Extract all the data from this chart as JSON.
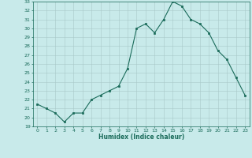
{
  "xlabel": "Humidex (Indice chaleur)",
  "x": [
    0,
    1,
    2,
    3,
    4,
    5,
    6,
    7,
    8,
    9,
    10,
    11,
    12,
    13,
    14,
    15,
    16,
    17,
    18,
    19,
    20,
    21,
    22,
    23
  ],
  "y": [
    21.5,
    21.0,
    20.5,
    19.5,
    20.5,
    20.5,
    22.0,
    22.5,
    23.0,
    23.5,
    25.5,
    30.0,
    30.5,
    29.5,
    31.0,
    33.0,
    32.5,
    31.0,
    30.5,
    29.5,
    27.5,
    26.5,
    24.5,
    22.5
  ],
  "ylim": [
    19,
    33
  ],
  "xlim": [
    -0.5,
    23.5
  ],
  "yticks": [
    19,
    20,
    21,
    22,
    23,
    24,
    25,
    26,
    27,
    28,
    29,
    30,
    31,
    32,
    33
  ],
  "xticks": [
    0,
    1,
    2,
    3,
    4,
    5,
    6,
    7,
    8,
    9,
    10,
    11,
    12,
    13,
    14,
    15,
    16,
    17,
    18,
    19,
    20,
    21,
    22,
    23
  ],
  "line_color": "#1a6b5a",
  "marker_color": "#1a6b5a",
  "bg_color": "#c8eaea",
  "grid_color": "#a8c8c8",
  "fig_bg": "#c8eaea",
  "label_fontsize": 4.5,
  "xlabel_fontsize": 5.5
}
